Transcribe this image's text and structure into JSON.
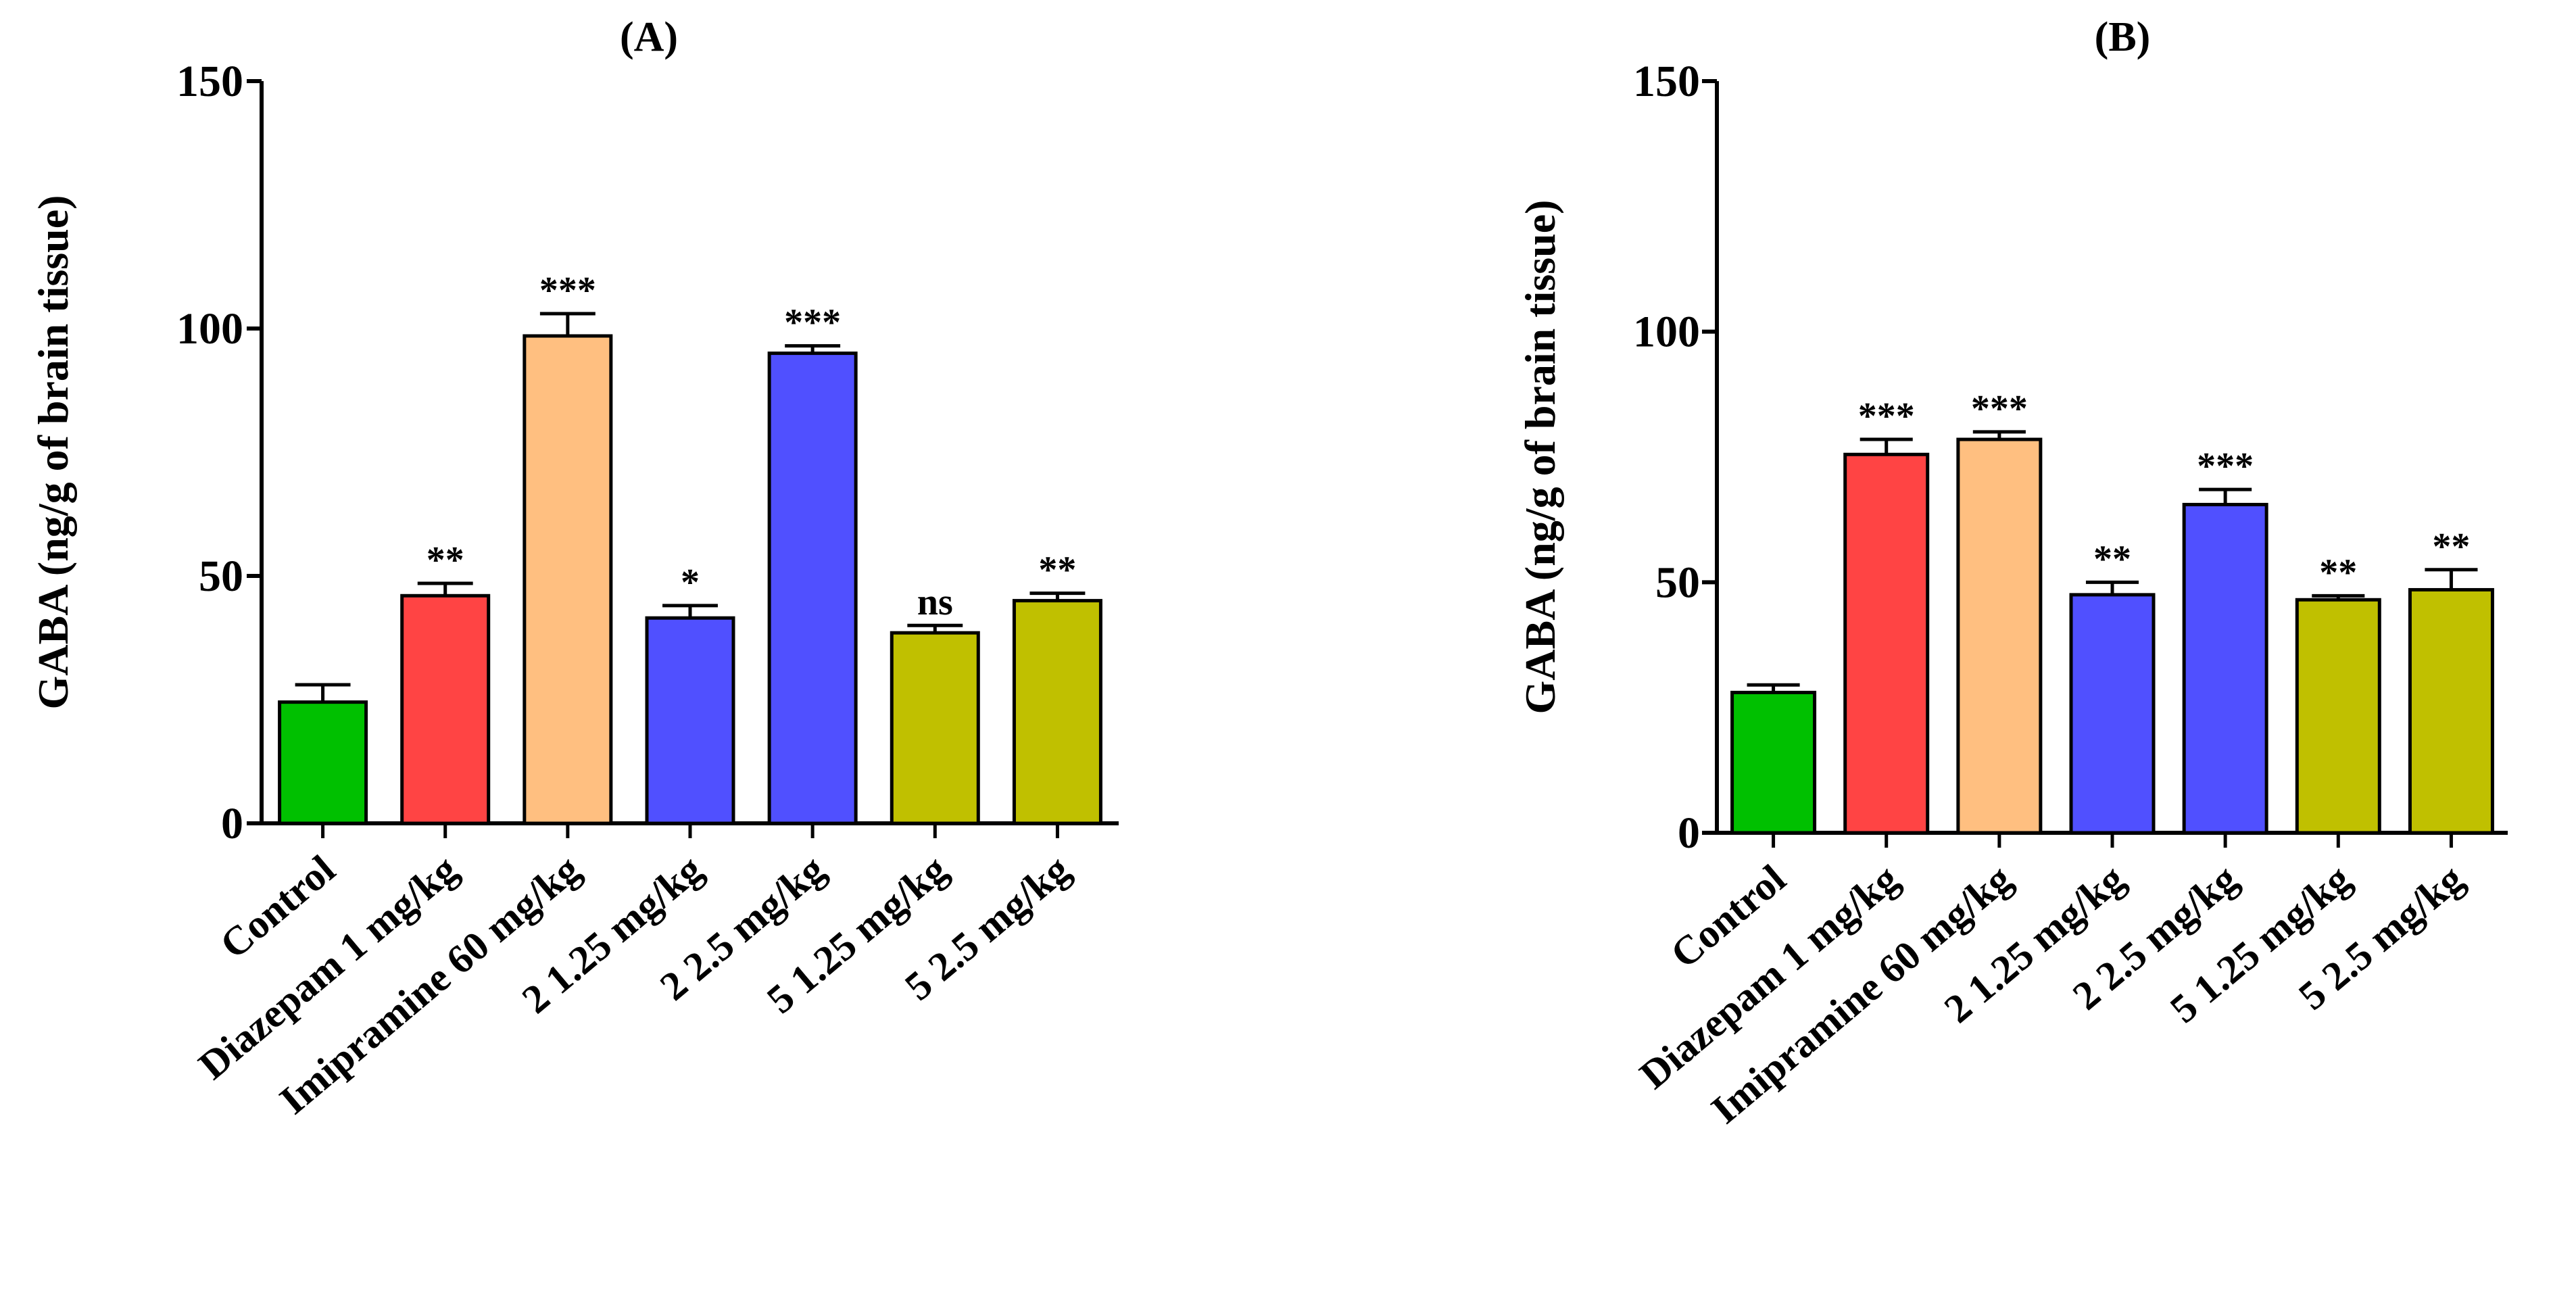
{
  "chart_data": [
    {
      "type": "bar",
      "title": "(A)",
      "xlabel": "",
      "ylabel": "GABA (ng/g of brain tissue)",
      "ylim": [
        0,
        150
      ],
      "yticks": [
        "0",
        "50",
        "100",
        "150"
      ],
      "categories": [
        "Control",
        "Diazepam 1 mg/kg",
        "Imipramine 60 mg/kg",
        "2 1.25 mg/kg",
        "2 2.5 mg/kg",
        "5 1.25 mg/kg",
        "5 2.5 mg/kg"
      ],
      "values": [
        24.5,
        46,
        98.5,
        41.5,
        95,
        38.5,
        45
      ],
      "errors": [
        3.5,
        2.5,
        4.5,
        2.5,
        1.5,
        1.5,
        1.5
      ],
      "significance": [
        "",
        "**",
        "***",
        "*",
        "***",
        "ns",
        "**"
      ],
      "colors": [
        "#00c000",
        "#ff4444",
        "#ffbf80",
        "#5050ff",
        "#5050ff",
        "#c0c000",
        "#c0c000"
      ]
    },
    {
      "type": "bar",
      "title": "(B)",
      "xlabel": "",
      "ylabel": "GABA (ng/g of brain tissue)",
      "ylim": [
        0,
        150
      ],
      "yticks": [
        "0",
        "50",
        "100",
        "150"
      ],
      "categories": [
        "Control",
        "Diazepam 1 mg/kg",
        "Imipramine 60 mg/kg",
        "2 1.25 mg/kg",
        "2 2.5 mg/kg",
        "5 1.25 mg/kg",
        "5 2.5 mg/kg"
      ],
      "values": [
        28,
        75.5,
        78.5,
        47.5,
        65.5,
        46.5,
        48.5
      ],
      "errors": [
        1.5,
        3,
        1.5,
        2.5,
        3,
        0.8,
        4
      ],
      "significance": [
        "",
        "***",
        "***",
        "**",
        "***",
        "**",
        "**"
      ],
      "colors": [
        "#00c000",
        "#ff4444",
        "#ffbf80",
        "#5050ff",
        "#5050ff",
        "#c0c000",
        "#c0c000"
      ]
    }
  ]
}
